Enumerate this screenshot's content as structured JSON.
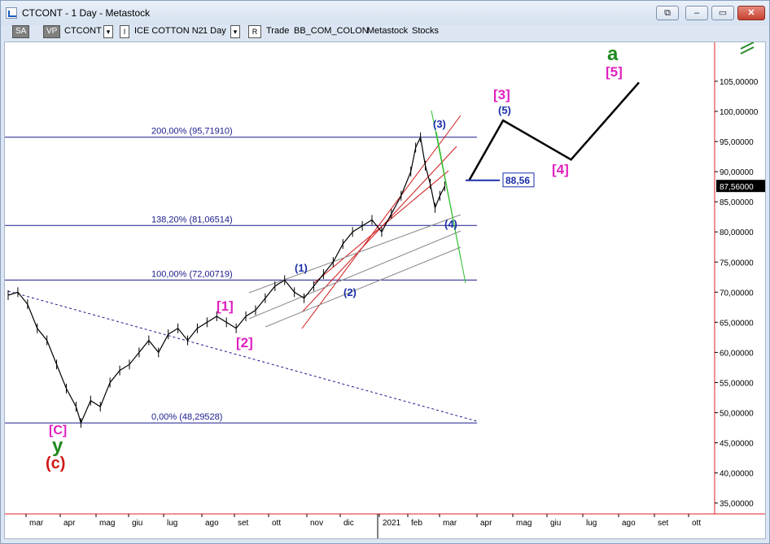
{
  "window": {
    "title": "CTCONT - 1 Day - Metastock",
    "buttons": {
      "restore_inner": "⧉",
      "minimize": "–",
      "maximize": "▭",
      "close": "✕"
    }
  },
  "toolbar": {
    "sa_label": "SA",
    "vp_label": "VP",
    "symbol": "CTCONT",
    "name_btn": "I",
    "instrument": "ICE COTTON N2",
    "period": "1 Day",
    "r_btn": "R",
    "trade": "Trade",
    "template": "BB_COM_COLON",
    "source": "Metastock",
    "type": "Stocks"
  },
  "icons": [
    "app-icon",
    "chevron-down-icon",
    "layout-icon"
  ],
  "colors": {
    "fib_line": "#1a1a8c",
    "price_bar": "#000000",
    "wave_magenta": "#e020c0",
    "wave_blue": "#1a2ea8",
    "wave_green": "#1d8a1d",
    "wave_red": "#d01818",
    "channel_red": "#d01818",
    "channel_green": "#30c030",
    "chart_border": "#e02020"
  },
  "chart_data": {
    "type": "line",
    "y_ticks": [
      "105,00000",
      "100,00000",
      "95,00000",
      "90,00000",
      "85,00000",
      "80,00000",
      "75,00000",
      "70,00000",
      "65,00000",
      "60,00000",
      "55,00000",
      "50,00000",
      "45,00000",
      "40,00000",
      "35,00000"
    ],
    "y_values": [
      105,
      100,
      95,
      90,
      85,
      80,
      75,
      70,
      65,
      60,
      55,
      50,
      45,
      40,
      35
    ],
    "x_labels": [
      "mar",
      "apr",
      "mag",
      "giu",
      "lug",
      "ago",
      "set",
      "ott",
      "nov",
      "dic",
      "2021",
      "feb",
      "mar",
      "apr",
      "mag",
      "giu",
      "lug",
      "ago",
      "set",
      "ott"
    ],
    "last_price_label": "87,56000",
    "last_price": 87.56,
    "target_label": "88,56",
    "target_value": 88.56,
    "fib_levels": [
      {
        "label": "200,00% (95,71910)",
        "value": 95.7191
      },
      {
        "label": "138,20% (81,06514)",
        "value": 81.06514
      },
      {
        "label": "100,00% (72,00719)",
        "value": 72.00719
      },
      {
        "label": "0,00% (48,29528)",
        "value": 48.29528
      }
    ],
    "price_path": [
      [
        0,
        69.5
      ],
      [
        2,
        70
      ],
      [
        4,
        68
      ],
      [
        6,
        64
      ],
      [
        8,
        62
      ],
      [
        10,
        58
      ],
      [
        12,
        54
      ],
      [
        14,
        51
      ],
      [
        15,
        48.3
      ],
      [
        17,
        52
      ],
      [
        19,
        51
      ],
      [
        21,
        55
      ],
      [
        23,
        57
      ],
      [
        25,
        58
      ],
      [
        27,
        60
      ],
      [
        29,
        62
      ],
      [
        31,
        60
      ],
      [
        33,
        63
      ],
      [
        35,
        64
      ],
      [
        37,
        62
      ],
      [
        39,
        64
      ],
      [
        41,
        65
      ],
      [
        43,
        66
      ],
      [
        45,
        65
      ],
      [
        47,
        64
      ],
      [
        49,
        66
      ],
      [
        51,
        67
      ],
      [
        53,
        69
      ],
      [
        55,
        71
      ],
      [
        57,
        72
      ],
      [
        59,
        70
      ],
      [
        61,
        69
      ],
      [
        63,
        71
      ],
      [
        65,
        73
      ],
      [
        67,
        75
      ],
      [
        69,
        78
      ],
      [
        71,
        80
      ],
      [
        73,
        81
      ],
      [
        75,
        82
      ],
      [
        77,
        80
      ],
      [
        79,
        83
      ],
      [
        81,
        86
      ],
      [
        83,
        90
      ],
      [
        84,
        94
      ],
      [
        85,
        95.7
      ],
      [
        86,
        91
      ],
      [
        87,
        88
      ],
      [
        88,
        84
      ],
      [
        89,
        86
      ],
      [
        90,
        87.56
      ]
    ],
    "projection": [
      [
        90,
        88.56
      ],
      [
        97,
        98.5
      ],
      [
        111,
        92
      ],
      [
        125,
        104.8
      ]
    ],
    "wave_labels": [
      {
        "text": "[C]",
        "color": "magenta"
      },
      {
        "text": "y",
        "color": "green"
      },
      {
        "text": "(c)",
        "color": "red"
      },
      {
        "text": "[1]",
        "color": "magenta"
      },
      {
        "text": "[2]",
        "color": "magenta"
      },
      {
        "text": "(1)",
        "color": "blue"
      },
      {
        "text": "(2)",
        "color": "blue"
      },
      {
        "text": "(3)",
        "color": "blue"
      },
      {
        "text": "(4)",
        "color": "blue"
      },
      {
        "text": "[3]",
        "color": "magenta"
      },
      {
        "text": "(5)",
        "color": "blue"
      },
      {
        "text": "[4]",
        "color": "magenta"
      },
      {
        "text": "a",
        "color": "green"
      },
      {
        "text": "[5]",
        "color": "magenta"
      }
    ]
  }
}
